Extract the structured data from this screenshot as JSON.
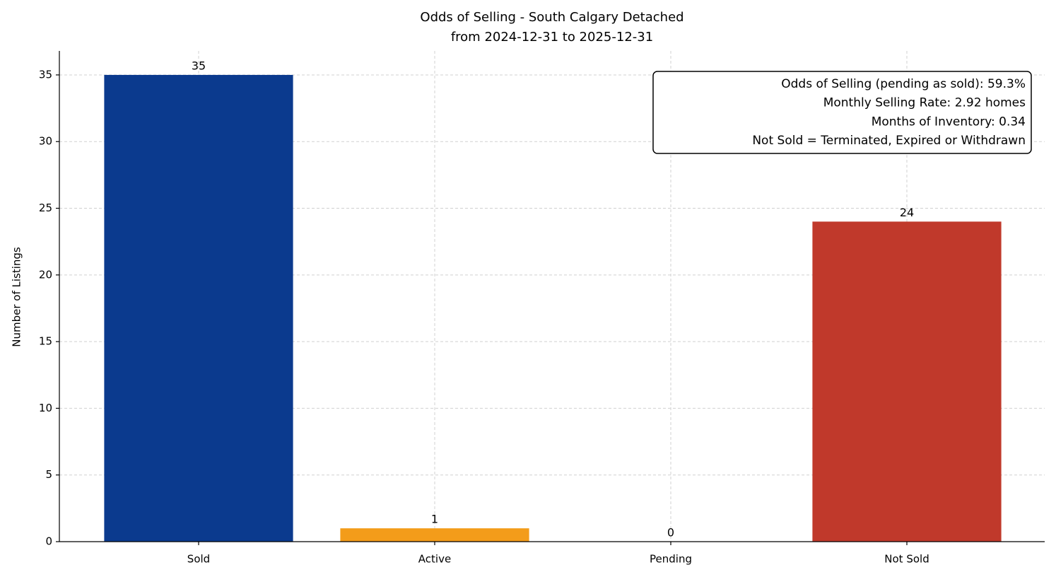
{
  "chart_data": {
    "type": "bar",
    "title": "Odds of Selling - South Calgary Detached",
    "subtitle": "from 2024-12-31 to 2025-12-31",
    "ylabel": "Number of Listings",
    "categories": [
      "Sold",
      "Active",
      "Pending",
      "Not Sold"
    ],
    "values": [
      35,
      1,
      0,
      24
    ],
    "colors": [
      "#0b3a8e",
      "#f39c1a",
      null,
      "#c0392b"
    ],
    "ylim": [
      0,
      36.8
    ],
    "yticks": [
      0,
      5,
      10,
      15,
      20,
      25,
      30,
      35
    ],
    "grid": true,
    "annotation": [
      "Odds of Selling (pending as sold): 59.3%",
      "Monthly Selling Rate: 2.92 homes",
      "Months of Inventory: 0.34",
      "Not Sold = Terminated, Expired or Withdrawn"
    ]
  }
}
